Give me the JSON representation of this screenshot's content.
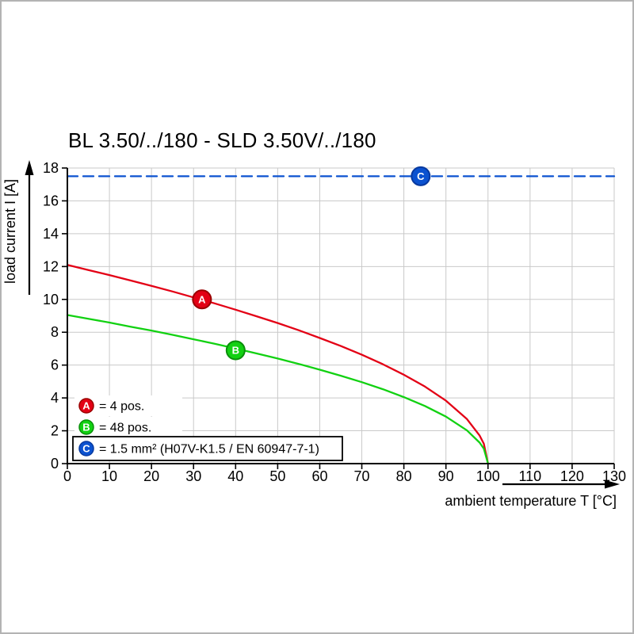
{
  "frame": {
    "border_color": "#b3b3b3"
  },
  "chart_data": {
    "type": "line",
    "title": "BL 3.50/../180 - SLD 3.50V/../180",
    "xlabel": "ambient temperature T [°C]",
    "ylabel": "load current I [A]",
    "xlim": [
      0,
      130
    ],
    "ylim": [
      0,
      18
    ],
    "xtick_step": 10,
    "ytick_step": 2,
    "grid": true,
    "grid_color": "#c9c9c9",
    "axis_color": "#000000",
    "legend_position": "bottom-left",
    "series": [
      {
        "name": "A",
        "legend_label": "= 4 pos.",
        "color": "#e30015",
        "edge_color": "#9a0000",
        "line_style": "solid",
        "marker": {
          "x": 32,
          "y": 10.0,
          "letter": "A"
        },
        "x": [
          0,
          5,
          10,
          15,
          20,
          25,
          30,
          35,
          40,
          45,
          50,
          55,
          60,
          65,
          70,
          75,
          80,
          85,
          90,
          95,
          98,
          99,
          100
        ],
        "y": [
          12.1,
          11.79,
          11.48,
          11.15,
          10.82,
          10.48,
          10.12,
          9.76,
          9.37,
          8.97,
          8.56,
          8.12,
          7.65,
          7.16,
          6.63,
          6.05,
          5.41,
          4.69,
          3.83,
          2.71,
          1.71,
          1.21,
          0
        ]
      },
      {
        "name": "B",
        "legend_label": "= 48 pos.",
        "color": "#12d112",
        "edge_color": "#0a8f0a",
        "line_style": "solid",
        "marker": {
          "x": 40,
          "y": 6.9,
          "letter": "B"
        },
        "x": [
          0,
          5,
          10,
          15,
          20,
          25,
          30,
          35,
          40,
          45,
          50,
          55,
          60,
          65,
          70,
          75,
          80,
          85,
          90,
          95,
          98,
          99,
          100
        ],
        "y": [
          9.05,
          8.82,
          8.59,
          8.34,
          8.1,
          7.84,
          7.57,
          7.3,
          7.01,
          6.71,
          6.4,
          6.07,
          5.72,
          5.35,
          4.96,
          4.53,
          4.05,
          3.51,
          2.86,
          2.02,
          1.28,
          0.91,
          0
        ]
      },
      {
        "name": "C",
        "legend_label": "= 1.5 mm² (H07V-K1.5 / EN 60947-7-1)",
        "color": "#0b52d0",
        "edge_color": "#07399f",
        "line_style": "dashed",
        "legend_boxed": true,
        "marker": {
          "x": 84,
          "y": 17.5,
          "letter": "C"
        },
        "x": [
          0,
          130
        ],
        "y": [
          17.5,
          17.5
        ]
      }
    ]
  }
}
